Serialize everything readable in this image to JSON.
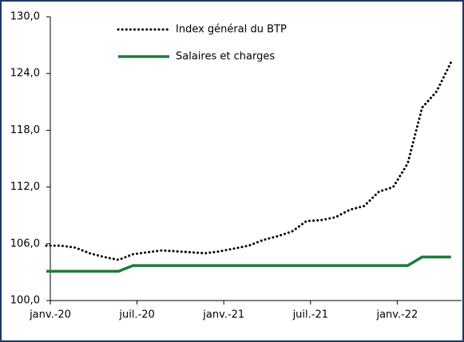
{
  "chart_data": {
    "type": "line",
    "categories": [
      "janv.-20",
      null,
      null,
      null,
      null,
      null,
      "juil.-20",
      null,
      null,
      null,
      null,
      null,
      "janv.-21",
      null,
      null,
      null,
      null,
      null,
      "juil.-21",
      null,
      null,
      null,
      null,
      null,
      "janv.-22",
      null,
      null,
      null,
      null
    ],
    "series": [
      {
        "name": "Index général du BTP",
        "color": "#000000",
        "style": "dotted",
        "values": [
          105.8,
          105.8,
          105.6,
          105.0,
          104.6,
          104.3,
          104.9,
          105.1,
          105.3,
          105.2,
          105.1,
          105.0,
          105.2,
          105.5,
          105.8,
          106.4,
          106.8,
          107.3,
          108.4,
          108.5,
          108.8,
          109.6,
          110.0,
          111.5,
          112.0,
          114.5,
          120.4,
          122.1,
          125.2
        ]
      },
      {
        "name": "Salaires et charges",
        "color": "#1e7b3c",
        "style": "solid",
        "values": [
          103.1,
          103.1,
          103.1,
          103.1,
          103.1,
          103.1,
          103.7,
          103.7,
          103.7,
          103.7,
          103.7,
          103.7,
          103.7,
          103.7,
          103.7,
          103.7,
          103.7,
          103.7,
          103.7,
          103.7,
          103.7,
          103.7,
          103.7,
          103.7,
          103.7,
          103.7,
          104.6,
          104.6,
          104.6
        ]
      }
    ],
    "ylim": [
      100,
      130
    ],
    "yticks": [
      {
        "value": 100,
        "label": "100,0"
      },
      {
        "value": 106,
        "label": "106,0"
      },
      {
        "value": 112,
        "label": "112,0"
      },
      {
        "value": 118,
        "label": "118,0"
      },
      {
        "value": 124,
        "label": "124,0"
      },
      {
        "value": 130,
        "label": "130,0"
      }
    ],
    "grid": false,
    "legend": "top-left"
  }
}
